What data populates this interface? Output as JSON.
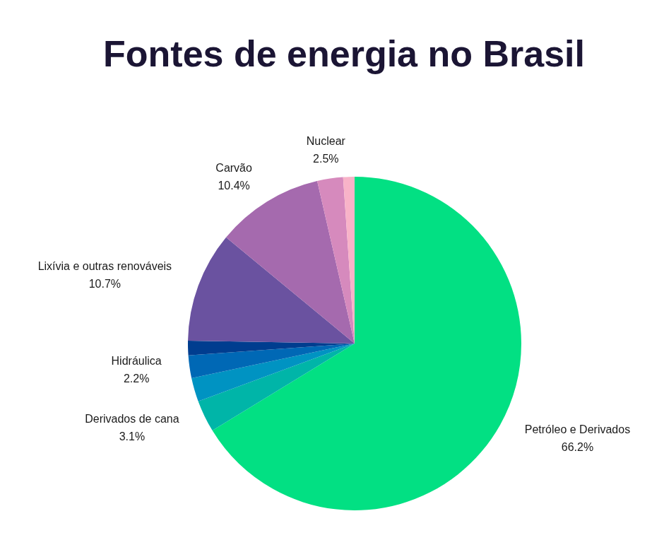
{
  "chart_data": {
    "type": "pie",
    "title": "Fontes de energia no Brasil",
    "categories": [
      "Petróleo e Derivados",
      "Derivados de cana",
      null,
      "Hidráulica",
      null,
      "Lixívia e outras renováveis",
      "Carvão",
      "Nuclear",
      null
    ],
    "values": [
      66.2,
      3.1,
      2.3,
      2.2,
      1.4,
      10.7,
      10.4,
      2.5,
      1.1
    ],
    "value_labels": [
      "66.2%",
      "3.1%",
      null,
      "2.2%",
      null,
      "10.7%",
      "10.4%",
      "2.5%",
      null
    ],
    "colors": [
      "#02e083",
      "#00b5a8",
      "#0093c2",
      "#0068b5",
      "#003d8f",
      "#6a52a0",
      "#a56aae",
      "#d68abd",
      "#f8b3c8"
    ],
    "data_labels": true
  }
}
